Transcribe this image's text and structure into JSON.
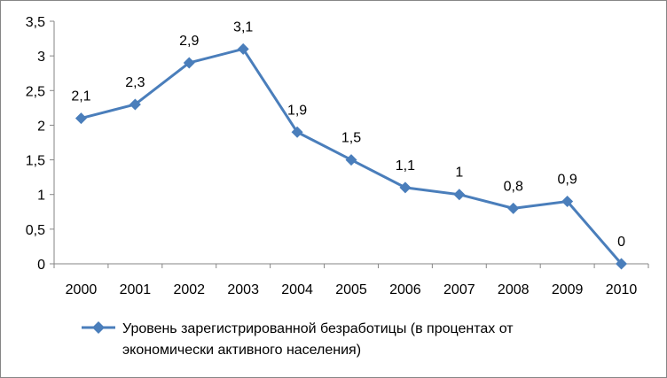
{
  "chart_data": {
    "type": "line",
    "categories": [
      "2000",
      "2001",
      "2002",
      "2003",
      "2004",
      "2005",
      "2006",
      "2007",
      "2008",
      "2009",
      "2010"
    ],
    "series": [
      {
        "name": "Уровень зарегистрированной безработицы (в процентах от экономически активного населения)",
        "values": [
          2.1,
          2.3,
          2.9,
          3.1,
          1.9,
          1.5,
          1.1,
          1,
          0.8,
          0.9,
          0
        ],
        "data_labels": [
          "2,1",
          "2,3",
          "2,9",
          "3,1",
          "1,9",
          "1,5",
          "1,1",
          "1",
          "0,8",
          "0,9",
          "0"
        ],
        "color": "#4a7ebb",
        "marker": "diamond"
      }
    ],
    "ylim": [
      0,
      3.5
    ],
    "y_ticks": [
      0,
      0.5,
      1,
      1.5,
      2,
      2.5,
      3,
      3.5
    ],
    "y_tick_labels": [
      "0",
      "0,5",
      "1",
      "1,5",
      "2",
      "2,5",
      "3",
      "3,5"
    ],
    "grid": false,
    "legend_position": "bottom",
    "title": "",
    "xlabel": "",
    "ylabel": ""
  },
  "legend": {
    "line1": "Уровень зарегистрированной безработицы (в процентах от",
    "line2": "экономически активного населения)"
  }
}
